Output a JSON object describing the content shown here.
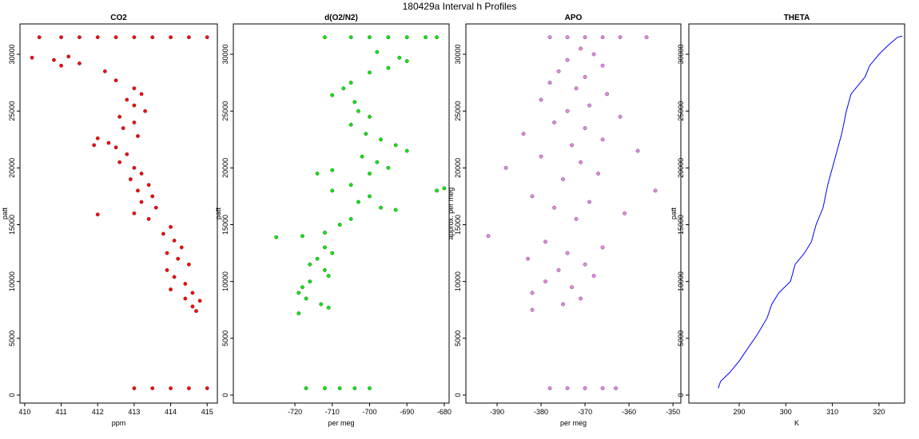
{
  "title": "180429a   Interval h Profiles",
  "chart_data": [
    {
      "type": "scatter",
      "title": "CO2",
      "xlabel": "ppm",
      "ylabel": "patt",
      "color": "#ff0000",
      "x": [
        410.4,
        411,
        411.5,
        412,
        412.5,
        413,
        413.5,
        414,
        414.5,
        415,
        410.8,
        411.2,
        411.5,
        411,
        410.2,
        412.2,
        412.5,
        413,
        413.2,
        412.8,
        413,
        413.3,
        412.6,
        413,
        412.7,
        413.1,
        412.3,
        412.5,
        412.8,
        412.6,
        413,
        413.2,
        412.9,
        413.4,
        413.1,
        413.5,
        413.2,
        413.6,
        413,
        413.4,
        414,
        413.8,
        414.1,
        414.3,
        413.9,
        414.2,
        414.5,
        413.9,
        414.1,
        414.4,
        414,
        414.6,
        414.4,
        414.8,
        414.6,
        414.7,
        412,
        411.9,
        412,
        413,
        413.5,
        414,
        414.5,
        415
      ],
      "y": [
        31500,
        31500,
        31500,
        31500,
        31500,
        31500,
        31500,
        31500,
        31500,
        31500,
        29500,
        29800,
        29200,
        29000,
        29700,
        28500,
        27700,
        27000,
        26500,
        26000,
        25500,
        25000,
        24500,
        24000,
        23500,
        22800,
        22200,
        21800,
        21200,
        20500,
        20000,
        19500,
        19000,
        18500,
        18000,
        17500,
        17000,
        16500,
        16000,
        15500,
        14800,
        14200,
        13600,
        13000,
        12500,
        12000,
        11500,
        11000,
        10400,
        9800,
        9300,
        9000,
        8500,
        8300,
        7800,
        7400,
        15900,
        22000,
        22600,
        600,
        600,
        600,
        600,
        600
      ],
      "xlim": [
        409.87,
        415.28
      ],
      "ylim": [
        -703,
        32670
      ],
      "xticks": [
        410,
        411,
        412,
        413,
        414,
        415
      ],
      "yticks": [
        0,
        5000,
        10000,
        15000,
        20000,
        25000,
        30000
      ]
    },
    {
      "type": "scatter",
      "title": "d(O2/N2)",
      "xlabel": "per meg",
      "ylabel": "patt",
      "color": "#00ee00",
      "x": [
        -712,
        -705,
        -700,
        -695,
        -690,
        -685,
        -682,
        -698,
        -692,
        -690,
        -695,
        -700,
        -705,
        -707,
        -710,
        -704,
        -703,
        -700,
        -705,
        -701,
        -697,
        -693,
        -690,
        -702,
        -698,
        -695,
        -700,
        -710,
        -714,
        -705,
        -710,
        -700,
        -703,
        -697,
        -693,
        -705,
        -708,
        -712,
        -718,
        -725,
        -712,
        -710,
        -714,
        -716,
        -712,
        -711,
        -716,
        -718,
        -719,
        -717,
        -713,
        -711,
        -719,
        -682,
        -680,
        -717,
        -712,
        -708,
        -704,
        -700
      ],
      "y": [
        31500,
        31500,
        31500,
        31500,
        31500,
        31500,
        31500,
        30200,
        29700,
        29400,
        28800,
        28400,
        27500,
        27000,
        26400,
        25800,
        25000,
        24500,
        23800,
        23000,
        22500,
        22000,
        21500,
        21000,
        20500,
        20000,
        19500,
        19800,
        19500,
        18500,
        18000,
        17500,
        17000,
        16500,
        16300,
        15500,
        15000,
        14300,
        14000,
        13900,
        13000,
        12500,
        12000,
        11500,
        11000,
        10500,
        10000,
        9500,
        9000,
        8500,
        8000,
        7700,
        7200,
        18000,
        18200,
        600,
        600,
        600,
        600,
        600
      ],
      "xlim": [
        -736.5,
        -678.7
      ],
      "ylim": [
        -703,
        32670
      ],
      "xticks": [
        -720,
        -710,
        -700,
        -690,
        -680
      ],
      "yticks": [
        0,
        5000,
        10000,
        15000,
        20000,
        25000,
        30000
      ]
    },
    {
      "type": "scatter",
      "title": "APO",
      "xlabel": "per meg",
      "ylabel": "approx. per meg",
      "color": "#ee82ee",
      "x": [
        -378,
        -374,
        -370,
        -366,
        -362,
        -356,
        -371,
        -368,
        -374,
        -366,
        -376,
        -370,
        -378,
        -372,
        -365,
        -380,
        -369,
        -374,
        -362,
        -377,
        -370,
        -384,
        -366,
        -373,
        -358,
        -380,
        -371,
        -388,
        -367,
        -375,
        -354,
        -382,
        -369,
        -377,
        -361,
        -372,
        -392,
        -379,
        -366,
        -374,
        -383,
        -370,
        -376,
        -368,
        -379,
        -373,
        -382,
        -371,
        -375,
        -382,
        -378,
        -374,
        -370,
        -366,
        -363
      ],
      "y": [
        31500,
        31500,
        31500,
        31500,
        31500,
        31500,
        30500,
        30000,
        29500,
        29000,
        28500,
        28000,
        27500,
        27000,
        26500,
        26000,
        25500,
        25000,
        24500,
        24000,
        23500,
        23000,
        22500,
        22000,
        21500,
        21000,
        20500,
        20000,
        19500,
        19000,
        18000,
        17500,
        17000,
        16500,
        16000,
        15500,
        14000,
        13500,
        13000,
        12500,
        12000,
        11500,
        11000,
        10500,
        10000,
        9500,
        9000,
        8500,
        8000,
        7500,
        600,
        600,
        600,
        600,
        600
      ],
      "xlim": [
        -397.1,
        -348.2
      ],
      "ylim": [
        -703,
        32670
      ],
      "xticks": [
        -390,
        -380,
        -370,
        -360,
        -350
      ],
      "yticks": [
        0,
        5000,
        10000,
        15000,
        20000,
        25000,
        30000
      ]
    },
    {
      "type": "line",
      "title": "THETA",
      "xlabel": "K",
      "ylabel": "patt",
      "color": "#0000ff",
      "x": [
        285.5,
        286,
        288,
        290,
        292,
        294,
        296,
        297,
        298.5,
        301,
        302,
        304,
        305.5,
        306.5,
        308,
        309,
        310,
        311,
        312,
        313,
        314,
        316,
        317,
        318,
        320,
        322,
        324,
        325
      ],
      "y": [
        600,
        1200,
        2000,
        3000,
        4200,
        5400,
        6800,
        8000,
        9000,
        10000,
        11500,
        12500,
        13500,
        15000,
        16500,
        18500,
        20000,
        21500,
        23000,
        25000,
        26500,
        27500,
        28000,
        29000,
        30000,
        30800,
        31500,
        31600
      ],
      "xlim": [
        279.2,
        325.5
      ],
      "ylim": [
        -703,
        32670
      ],
      "xticks": [
        290,
        300,
        310,
        320
      ],
      "yticks": [
        0,
        5000,
        10000,
        15000,
        20000,
        25000,
        30000
      ]
    }
  ]
}
